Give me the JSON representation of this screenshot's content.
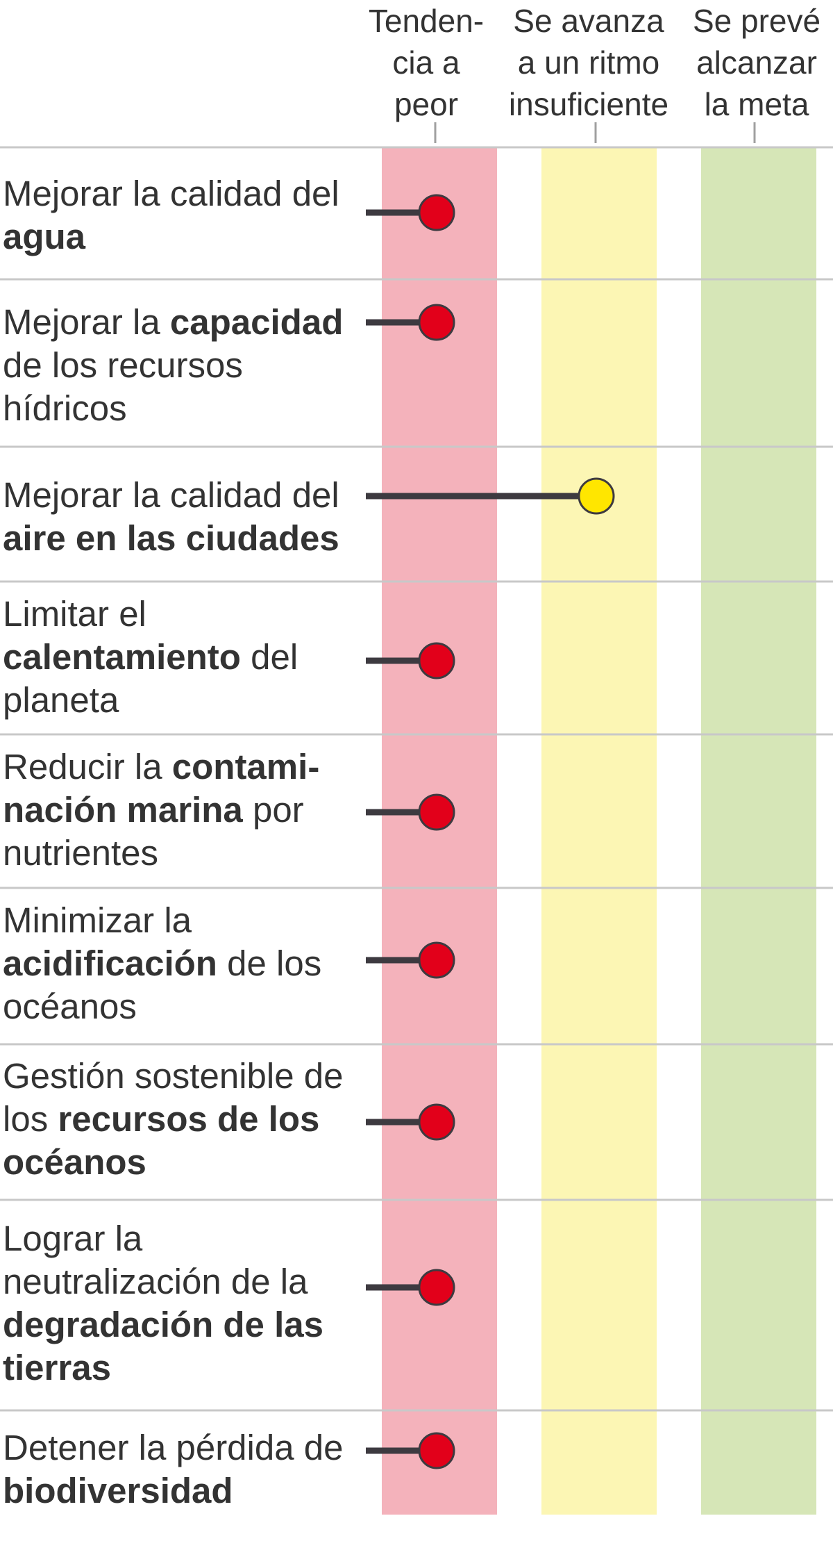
{
  "chart_data": {
    "type": "dot-stage",
    "stages": [
      {
        "key": "worse",
        "lines": [
          "Tenden-",
          "cia a",
          "peor"
        ],
        "color": "#f4b2bb"
      },
      {
        "key": "insufficient",
        "lines": [
          "Se avanza",
          "a un ritmo",
          "insuficiente"
        ],
        "color": "#fcf6b4"
      },
      {
        "key": "ontrack",
        "lines": [
          "Se prevé",
          "alcanzar",
          "la meta"
        ],
        "color": "#d6e6b7"
      }
    ],
    "rows": [
      {
        "label": [
          {
            "t": "Mejorar la calidad del "
          },
          {
            "t": "agua",
            "b": true
          }
        ],
        "stage": "worse",
        "position": 0.0
      },
      {
        "label": [
          {
            "t": "Mejorar la "
          },
          {
            "t": "capacidad",
            "b": true
          },
          {
            "t": " de los recursos hídricos"
          }
        ],
        "stage": "worse",
        "position": 0.0
      },
      {
        "label": [
          {
            "t": "Mejorar la calidad del "
          },
          {
            "t": "aire en las ciudades",
            "b": true
          }
        ],
        "stage": "insufficient",
        "position": 1.0
      },
      {
        "label": [
          {
            "t": "Limitar el "
          },
          {
            "t": "calentamiento",
            "b": true
          },
          {
            "t": " del planeta"
          }
        ],
        "stage": "worse",
        "position": 0.0
      },
      {
        "label": [
          {
            "t": "Reducir la "
          },
          {
            "t": "contami-nación marina",
            "b": true
          },
          {
            "t": " por nutrientes"
          }
        ],
        "stage": "worse",
        "position": 0.0
      },
      {
        "label": [
          {
            "t": "Minimizar la "
          },
          {
            "t": "acidificación",
            "b": true
          },
          {
            "t": " de los océanos"
          }
        ],
        "stage": "worse",
        "position": 0.0
      },
      {
        "label": [
          {
            "t": "Gestión sostenible de los "
          },
          {
            "t": "recursos de los océanos",
            "b": true
          }
        ],
        "stage": "worse",
        "position": 0.0
      },
      {
        "label": [
          {
            "t": "Lograr la neutralización de la "
          },
          {
            "t": "degradación de las tierras",
            "b": true
          }
        ],
        "stage": "worse",
        "position": 0.0
      },
      {
        "label": [
          {
            "t": "Detener la pérdida de "
          },
          {
            "t": "biodiversidad",
            "b": true
          }
        ],
        "stage": "worse",
        "position": 0.0
      }
    ],
    "marker_colors": {
      "worse": "#e2001a",
      "insufficient": "#ffe600",
      "ontrack": "#7ab51d"
    },
    "line_color": "#3d3a40",
    "separator_color": "#c8c8c8"
  }
}
